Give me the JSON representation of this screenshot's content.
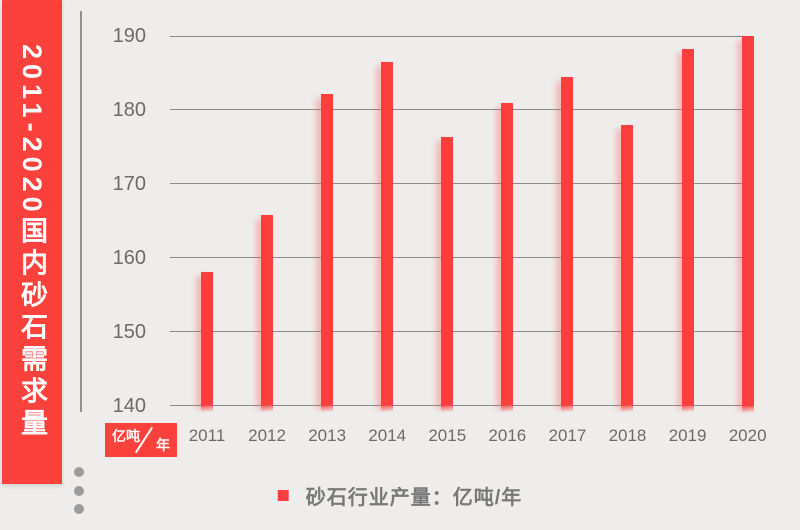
{
  "banner": {
    "title": "2011-2020国内砂石需求量",
    "background": "#FA413B",
    "text_color": "#FFFFFF"
  },
  "axis_unit_badge": {
    "numerator": "亿吨",
    "denominator": "年",
    "background": "#FA413B",
    "text_color": "#FFFFFF"
  },
  "legend": {
    "marker_color": "#FB3E3E",
    "label": "砂石行业产量：亿吨/年"
  },
  "colors": {
    "page_background": "#EEEDEB",
    "bar": "#FB3E3E",
    "gridline": "#8B8B8B",
    "axis_line": "#919191",
    "tick_label": "#6B6B6B",
    "decor_dot": "#9C9C9C"
  },
  "decor": {
    "dot_count": 3
  },
  "chart_data": {
    "type": "bar",
    "title": "2011-2020国内砂石需求量",
    "series_name": "砂石行业产量",
    "unit": "亿吨/年",
    "categories": [
      "2011",
      "2012",
      "2013",
      "2014",
      "2015",
      "2016",
      "2017",
      "2018",
      "2019",
      "2020"
    ],
    "values": [
      158,
      165.8,
      182.2,
      186.5,
      176.4,
      181,
      184.5,
      177.9,
      188.2,
      190
    ],
    "ylim": [
      140,
      190
    ],
    "yticks": [
      140,
      150,
      160,
      170,
      180,
      190
    ],
    "grid": true,
    "legend_position": "bottom"
  }
}
